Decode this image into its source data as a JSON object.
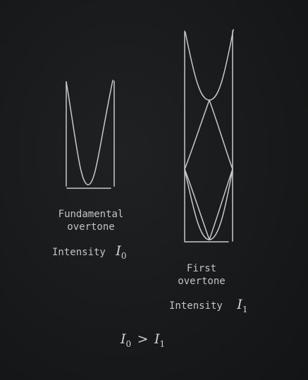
{
  "fundamental": {
    "title_line1": "Fundamental",
    "title_line2": "overtone",
    "intensity_label": "Intensity",
    "intensity_symbol": "I",
    "intensity_subscript": "0"
  },
  "first_overtone": {
    "title_line1": "First",
    "title_line2": "overtone",
    "intensity_label": "Intensity",
    "intensity_symbol": "I",
    "intensity_subscript": "1"
  },
  "relation": {
    "left_symbol": "I",
    "left_subscript": "0",
    "operator": ">",
    "right_symbol": "I",
    "right_subscript": "1"
  },
  "colors": {
    "background": "#17191a",
    "chalk": "#c9c9c9"
  }
}
